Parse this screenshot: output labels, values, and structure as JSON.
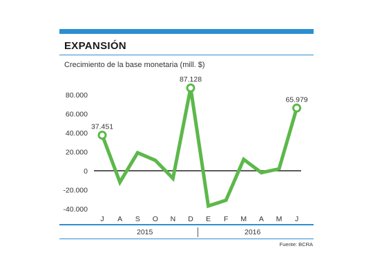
{
  "title": "EXPANSIÓN",
  "subtitle": "Crecimiento de la base monetaria (mill. $)",
  "source": "Fuente: BCRA",
  "years": [
    "2015",
    "2016"
  ],
  "colors": {
    "line": "#5cb84a",
    "accent": "#2b8fcf",
    "zero_line": "#222222"
  },
  "chart_data": {
    "type": "line",
    "title": "EXPANSIÓN",
    "subtitle": "Crecimiento de la base monetaria (mill. $)",
    "xlabel": "",
    "ylabel": "",
    "categories": [
      "J",
      "A",
      "S",
      "O",
      "N",
      "D",
      "E",
      "F",
      "M",
      "A",
      "M",
      "J"
    ],
    "yticks": [
      "80.000",
      "60.000",
      "40.000",
      "20.000",
      "0",
      "-20.000",
      "-40.000"
    ],
    "ytick_values": [
      80000,
      60000,
      40000,
      20000,
      0,
      -20000,
      -40000
    ],
    "ylim": [
      -40000,
      100000
    ],
    "series": [
      {
        "values": [
          37451,
          -12000,
          19000,
          11000,
          -8000,
          87128,
          -37000,
          -31000,
          12000,
          -2000,
          2000,
          65979
        ]
      }
    ],
    "annotations": [
      {
        "index": 0,
        "label": "37.451"
      },
      {
        "index": 5,
        "label": "87.128"
      },
      {
        "index": 11,
        "label": "65.979"
      }
    ],
    "grid": false,
    "legend": "none"
  }
}
